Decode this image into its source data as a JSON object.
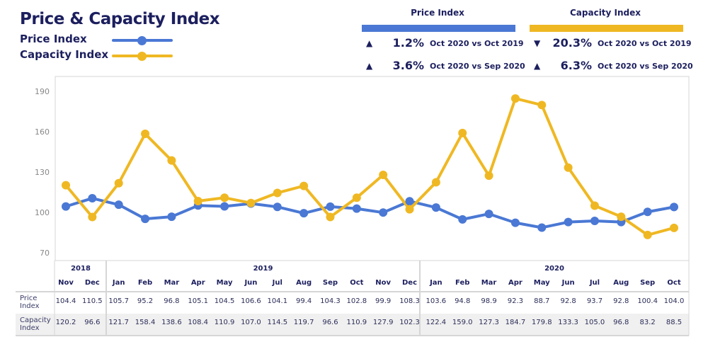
{
  "header": {
    "title": "Price & Capacity Index"
  },
  "legend": [
    {
      "label": "Price Index",
      "color": "#4a78d4"
    },
    {
      "label": "Capacity Index",
      "color": "#efb823"
    }
  ],
  "kpis": [
    {
      "title": "Price Index",
      "color": "#4a78d4",
      "rows": [
        {
          "direction": "up",
          "icon": "triangle-up-icon",
          "value": "1.2%",
          "comparison": "Oct 2020 vs Oct 2019"
        },
        {
          "direction": "up",
          "icon": "triangle-up-icon",
          "value": "3.6%",
          "comparison": "Oct 2020 vs Sep 2020"
        }
      ]
    },
    {
      "title": "Capacity Index",
      "color": "#efb823",
      "rows": [
        {
          "direction": "down",
          "icon": "triangle-down-icon",
          "value": "20.3%",
          "comparison": "Oct 2020 vs Oct 2019"
        },
        {
          "direction": "up",
          "icon": "triangle-up-icon",
          "value": "6.3%",
          "comparison": "Oct 2020 vs Sep 2020"
        }
      ]
    }
  ],
  "chart_data": {
    "type": "line",
    "ylim": [
      70,
      195
    ],
    "yticks": [
      "70",
      "100",
      "130",
      "160",
      "190"
    ],
    "grid": false,
    "legend": "top-left",
    "years": [
      {
        "label": "2018",
        "span": 2
      },
      {
        "label": "2019",
        "span": 12
      },
      {
        "label": "2020",
        "span": 10
      }
    ],
    "categories": [
      "Nov",
      "Dec",
      "Jan",
      "Feb",
      "Mar",
      "Apr",
      "May",
      "Jun",
      "Jul",
      "Aug",
      "Sep",
      "Oct",
      "Nov",
      "Dec",
      "Jan",
      "Feb",
      "Mar",
      "Apr",
      "May",
      "Jun",
      "Jul",
      "Aug",
      "Sep",
      "Oct"
    ],
    "series": [
      {
        "name": "Price Index",
        "row_label": [
          "Price",
          "Index"
        ],
        "color": "#4a78d4",
        "values": [
          104.4,
          110.5,
          105.7,
          95.2,
          96.8,
          105.1,
          104.5,
          106.6,
          104.1,
          99.4,
          104.3,
          102.8,
          99.9,
          108.3,
          103.6,
          94.8,
          98.9,
          92.3,
          88.7,
          92.8,
          93.7,
          92.8,
          100.4,
          104.0
        ]
      },
      {
        "name": "Capacity Index",
        "row_label": [
          "Capacity",
          "Index"
        ],
        "color": "#efb823",
        "values": [
          120.2,
          96.6,
          121.7,
          158.4,
          138.6,
          108.4,
          110.9,
          107.0,
          114.5,
          119.7,
          96.6,
          110.9,
          127.9,
          102.3,
          122.4,
          159.0,
          127.3,
          184.7,
          179.8,
          133.3,
          105.0,
          96.8,
          83.2,
          88.5
        ]
      }
    ]
  }
}
